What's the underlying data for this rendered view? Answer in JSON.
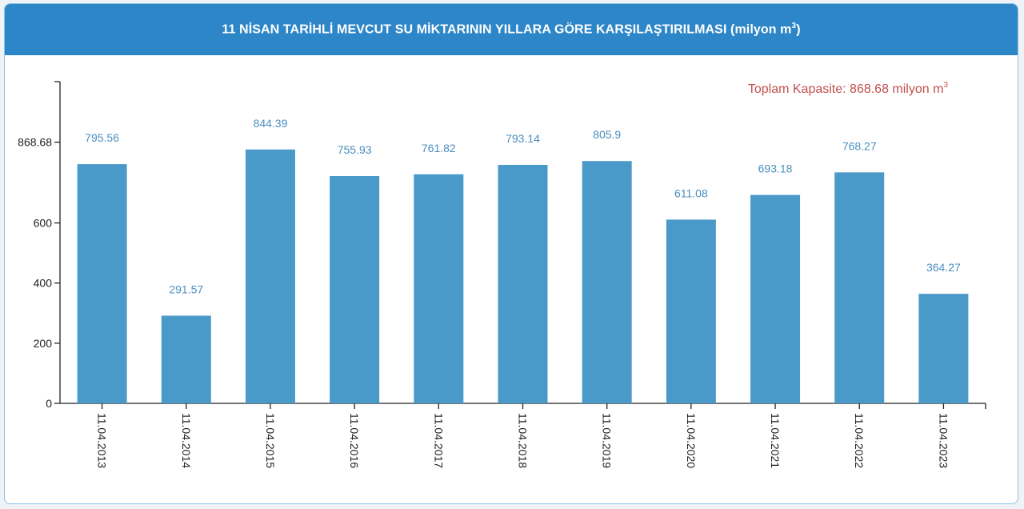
{
  "header": {
    "title_main": "11 NİSAN TARİHLİ MEVCUT SU MİKTARININ YILLARA GÖRE KARŞILAŞTIRILMASI",
    "title_unit": "(milyon m",
    "title_unit_sup": "3",
    "title_unit_close": ")"
  },
  "capacity_note": {
    "text": "Toplam Kapasite: 868.68 milyon m",
    "sup": "3",
    "color": "#c0504d"
  },
  "colors": {
    "header_bg": "#2d86c8",
    "bar": "#4a9ac9",
    "label": "#4a8fbf",
    "axis": "#222222"
  },
  "chart_data": {
    "type": "bar",
    "categories": [
      "11.04.2013",
      "11.04.2014",
      "11.04.2015",
      "11.04.2016",
      "11.04.2017",
      "11.04.2018",
      "11.04.2019",
      "11.04.2020",
      "11.04.2021",
      "11.04.2022",
      "11.04.2023"
    ],
    "values": [
      795.56,
      291.57,
      844.39,
      755.93,
      761.82,
      793.14,
      805.9,
      611.08,
      693.18,
      768.27,
      364.27
    ],
    "value_labels": [
      "795.56",
      "291.57",
      "844.39",
      "755.93",
      "761.82",
      "793.14",
      "805.9",
      "611.08",
      "693.18",
      "768.27",
      "364.27"
    ],
    "y_ticks": [
      0,
      200,
      400,
      600,
      868.68
    ],
    "y_tick_labels": [
      "0",
      "200",
      "400",
      "600",
      "868.68"
    ],
    "ylim": [
      0,
      1070
    ],
    "grid": false,
    "legend": "none"
  }
}
